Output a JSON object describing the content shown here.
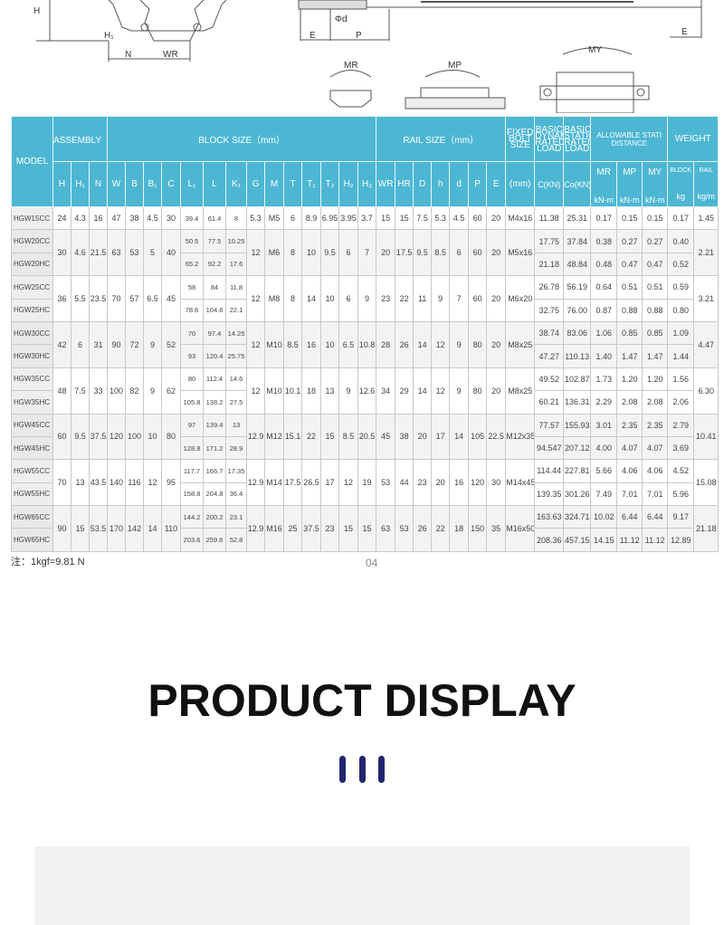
{
  "diagram": {
    "labels": {
      "H": "H",
      "H1": "H₁",
      "N": "N",
      "WR": "WR",
      "phi_d": "Φd",
      "E1": "E",
      "P": "P",
      "E2": "E",
      "MR": "MR",
      "MP": "MP",
      "MY": "MY"
    }
  },
  "table": {
    "headers": {
      "model": "MODEL",
      "assembly": "ASSEMBLY（mm）",
      "block": "BLOCK SIZE（mm）",
      "rail": "RAIL SIZE（mm）",
      "bolt": "FIXED BOLT SIZE",
      "dynamic": "BASIC DYNAMIC RATED LOAD",
      "static": "BASIC STATIC RATED LOAD",
      "allowable": "ALLOWABLE STATI DISTANCE",
      "weight": "WEIGHT"
    },
    "columns": [
      "H",
      "H₁",
      "N",
      "W",
      "B",
      "B₁",
      "C",
      "L₁",
      "L",
      "K₁",
      "G",
      "M",
      "T",
      "T₁",
      "T₂",
      "H₂",
      "H₃",
      "WR",
      "HR",
      "D",
      "h",
      "d",
      "P",
      "E",
      "(mm)",
      "C(KN)",
      "Co(KN)"
    ],
    "moments": [
      {
        "name": "MR",
        "unit": "kN-m"
      },
      {
        "name": "MP",
        "unit": "kN-m"
      },
      {
        "name": "MY",
        "unit": "kN-m"
      },
      {
        "name": "BLOCK",
        "unit": "kg"
      },
      {
        "name": "RAIL",
        "unit": "kg/m"
      }
    ],
    "groups": [
      {
        "models": [
          "HGW15CC"
        ],
        "a": [
          "24",
          "4.3",
          "16",
          "47",
          "38",
          "4.5",
          "30"
        ],
        "b": [
          "5.3",
          "M5",
          "6",
          "8.9",
          "6.95",
          "3.95",
          "3.7",
          "15",
          "15",
          "7.5",
          "5.3",
          "4.5",
          "60",
          "20",
          "M4x16"
        ],
        "per": [
          [
            "39.4",
            "61.4",
            "8",
            "11.38",
            "25.31",
            "0.17",
            "0.15",
            "0.15",
            "0.17"
          ]
        ],
        "rail": "1.45"
      },
      {
        "models": [
          "HGW20CC",
          "HGW20HC"
        ],
        "a": [
          "30",
          "4.6",
          "21.5",
          "63",
          "53",
          "5",
          "40"
        ],
        "b": [
          "12",
          "M6",
          "8",
          "10",
          "9.5",
          "6",
          "7",
          "20",
          "17.5",
          "9.5",
          "8.5",
          "6",
          "60",
          "20",
          "M5x16"
        ],
        "per": [
          [
            "50.5",
            "77.5",
            "10.25",
            "17.75",
            "37.84",
            "0.38",
            "0.27",
            "0.27",
            "0.40"
          ],
          [
            "65.2",
            "92.2",
            "17.6",
            "21.18",
            "48.84",
            "0.48",
            "0.47",
            "0.47",
            "0.52"
          ]
        ],
        "rail": "2.21"
      },
      {
        "models": [
          "HGW25CC",
          "HGW25HC"
        ],
        "a": [
          "36",
          "5.5",
          "23.5",
          "70",
          "57",
          "6.5",
          "45"
        ],
        "b": [
          "12",
          "M8",
          "8",
          "14",
          "10",
          "6",
          "9",
          "23",
          "22",
          "11",
          "9",
          "7",
          "60",
          "20",
          "M6x20"
        ],
        "per": [
          [
            "58",
            "84",
            "11.8",
            "26.78",
            "56.19",
            "0.64",
            "0.51",
            "0.51",
            "0.59"
          ],
          [
            "78.6",
            "104.6",
            "22.1",
            "32.75",
            "76.00",
            "0.87",
            "0.88",
            "0.88",
            "0.80"
          ]
        ],
        "rail": "3.21"
      },
      {
        "models": [
          "HGW30CC",
          "HGW30HC"
        ],
        "a": [
          "42",
          "6",
          "31",
          "90",
          "72",
          "9",
          "52"
        ],
        "b": [
          "12",
          "M10",
          "8.5",
          "16",
          "10",
          "6.5",
          "10.8",
          "28",
          "26",
          "14",
          "12",
          "9",
          "80",
          "20",
          "M8x25"
        ],
        "per": [
          [
            "70",
            "97.4",
            "14.25",
            "38.74",
            "83.06",
            "1.06",
            "0.85",
            "0.85",
            "1.09"
          ],
          [
            "93",
            "120.4",
            "25.75",
            "47.27",
            "110.13",
            "1.40",
            "1.47",
            "1.47",
            "1.44"
          ]
        ],
        "rail": "4.47"
      },
      {
        "models": [
          "HGW35CC",
          "HGW35HC"
        ],
        "a": [
          "48",
          "7.5",
          "33",
          "100",
          "82",
          "9",
          "62"
        ],
        "b": [
          "12",
          "M10",
          "10.1",
          "18",
          "13",
          "9",
          "12.6",
          "34",
          "29",
          "14",
          "12",
          "9",
          "80",
          "20",
          "M8x25"
        ],
        "per": [
          [
            "80",
            "112.4",
            "14.6",
            "49.52",
            "102.87",
            "1.73",
            "1.20",
            "1.20",
            "1.56"
          ],
          [
            "105.8",
            "138.2",
            "27.5",
            "60.21",
            "136.31",
            "2.29",
            "2.08",
            "2.08",
            "2.06"
          ]
        ],
        "rail": "6.30"
      },
      {
        "models": [
          "HGW45CC",
          "HGW45HC"
        ],
        "a": [
          "60",
          "9.5",
          "37.5",
          "120",
          "100",
          "10",
          "80"
        ],
        "b": [
          "12.9",
          "M12",
          "15.1",
          "22",
          "15",
          "8.5",
          "20.5",
          "45",
          "38",
          "20",
          "17",
          "14",
          "105",
          "22.5",
          "M12x35"
        ],
        "per": [
          [
            "97",
            "139.4",
            "13",
            "77.57",
            "155.93",
            "3.01",
            "2.35",
            "2.35",
            "2.79"
          ],
          [
            "128.8",
            "171.2",
            "28.9",
            "94.547",
            "207.12",
            "4.00",
            "4.07",
            "4.07",
            "3.69"
          ]
        ],
        "rail": "10.41"
      },
      {
        "models": [
          "HGW55CC",
          "HGW55HC"
        ],
        "a": [
          "70",
          "13",
          "43.5",
          "140",
          "116",
          "12",
          "95"
        ],
        "b": [
          "12.9",
          "M14",
          "17.5",
          "26.5",
          "17",
          "12",
          "19",
          "53",
          "44",
          "23",
          "20",
          "16",
          "120",
          "30",
          "M14x45"
        ],
        "per": [
          [
            "117.7",
            "166.7",
            "17.35",
            "114.44",
            "227.81",
            "5.66",
            "4.06",
            "4.06",
            "4.52"
          ],
          [
            "158.8",
            "204.8",
            "36.4",
            "139.35",
            "301.26",
            "7.49",
            "7.01",
            "7.01",
            "5.96"
          ]
        ],
        "rail": "15.08"
      },
      {
        "models": [
          "HGW65CC",
          "HGW65HC"
        ],
        "a": [
          "90",
          "15",
          "53.5",
          "170",
          "142",
          "14",
          "110"
        ],
        "b": [
          "12.9",
          "M16",
          "25",
          "37.5",
          "23",
          "15",
          "15",
          "63",
          "53",
          "26",
          "22",
          "18",
          "150",
          "35",
          "M16x50"
        ],
        "per": [
          [
            "144.2",
            "200.2",
            "23.1",
            "163.63",
            "324.71",
            "10.02",
            "6.44",
            "6.44",
            "9.17"
          ],
          [
            "203.6",
            "259.6",
            "52.8",
            "208.36",
            "457.15",
            "14.15",
            "11.12",
            "11.12",
            "12.89"
          ]
        ],
        "rail": "21.18"
      }
    ]
  },
  "note": "注：1kgf=9.81 N",
  "page_number": "04",
  "section_title": "PRODUCT DISPLAY",
  "colors": {
    "header": "#4db7d3",
    "accent_bars": "#23266e",
    "gallery_bg": "#f2f2f2"
  }
}
